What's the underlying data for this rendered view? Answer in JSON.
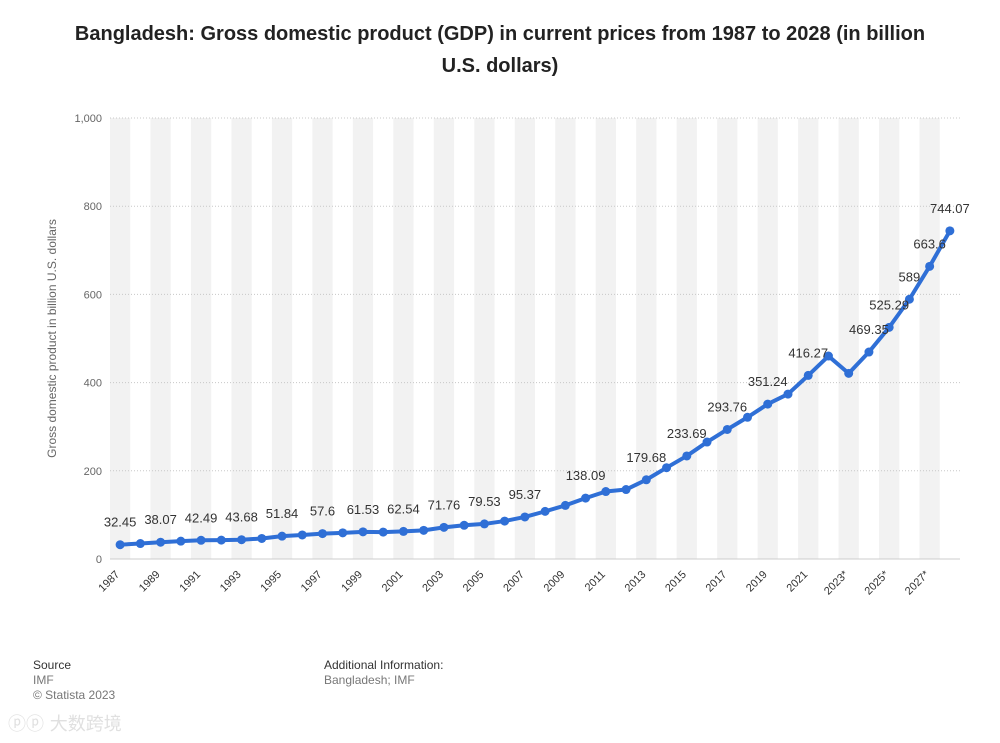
{
  "chart_data": {
    "type": "line",
    "title": "Bangladesh: Gross domestic product (GDP) in current prices from 1987 to 2028 (in billion U.S. dollars)",
    "ylabel": "Gross domestic product in billion U.S. dollars",
    "xlabel": "",
    "ylim": [
      0,
      1000
    ],
    "yticks": [
      "0",
      "200",
      "400",
      "600",
      "800",
      "1,000"
    ],
    "ytick_values": [
      0,
      200,
      400,
      600,
      800,
      1000
    ],
    "series_color": "#2f6fd6",
    "x": [
      "1987",
      "1988",
      "1989",
      "1990",
      "1991",
      "1992",
      "1993",
      "1994",
      "1995",
      "1996",
      "1997",
      "1998",
      "1999",
      "2000",
      "2001",
      "2002",
      "2003",
      "2004",
      "2005",
      "2006",
      "2007",
      "2008",
      "2009",
      "2010",
      "2011",
      "2012",
      "2013",
      "2014",
      "2015",
      "2016",
      "2017",
      "2018",
      "2019",
      "2020",
      "2021",
      "2022",
      "2023*",
      "2024*",
      "2025*",
      "2026*",
      "2027*",
      "2028*"
    ],
    "values": [
      32.45,
      35.1,
      38.07,
      40.5,
      42.49,
      42.8,
      43.68,
      46.5,
      51.84,
      54.5,
      57.6,
      59.3,
      61.53,
      61.0,
      62.54,
      65.0,
      71.76,
      76.5,
      79.53,
      86.0,
      95.37,
      108.0,
      121.5,
      138.09,
      153.0,
      157.5,
      179.68,
      207.0,
      233.69,
      265.2,
      293.76,
      321.4,
      351.24,
      374.0,
      416.27,
      460.2,
      421.0,
      469.35,
      525.29,
      589,
      663.6,
      744.07
    ],
    "labels": [
      {
        "i": 0,
        "text": "32.45"
      },
      {
        "i": 2,
        "text": "38.07"
      },
      {
        "i": 4,
        "text": "42.49"
      },
      {
        "i": 6,
        "text": "43.68"
      },
      {
        "i": 8,
        "text": "51.84"
      },
      {
        "i": 10,
        "text": "57.6"
      },
      {
        "i": 12,
        "text": "61.53"
      },
      {
        "i": 14,
        "text": "62.54"
      },
      {
        "i": 16,
        "text": "71.76"
      },
      {
        "i": 18,
        "text": "79.53"
      },
      {
        "i": 20,
        "text": "95.37"
      },
      {
        "i": 23,
        "text": "138.09"
      },
      {
        "i": 26,
        "text": "179.68"
      },
      {
        "i": 28,
        "text": "233.69"
      },
      {
        "i": 30,
        "text": "293.76"
      },
      {
        "i": 32,
        "text": "351.24"
      },
      {
        "i": 34,
        "text": "416.27"
      },
      {
        "i": 37,
        "text": "469.35"
      },
      {
        "i": 38,
        "text": "525.29"
      },
      {
        "i": 39,
        "text": "589"
      },
      {
        "i": 40,
        "text": "663.6"
      },
      {
        "i": 41,
        "text": "744.07"
      }
    ],
    "xtick_every": 2
  },
  "footer": {
    "source_label": "Source",
    "source_value": "IMF",
    "copyright": "© Statista 2023",
    "additional_label": "Additional Information:",
    "additional_value": "Bangladesh; IMF"
  },
  "watermark": "大数跨境"
}
